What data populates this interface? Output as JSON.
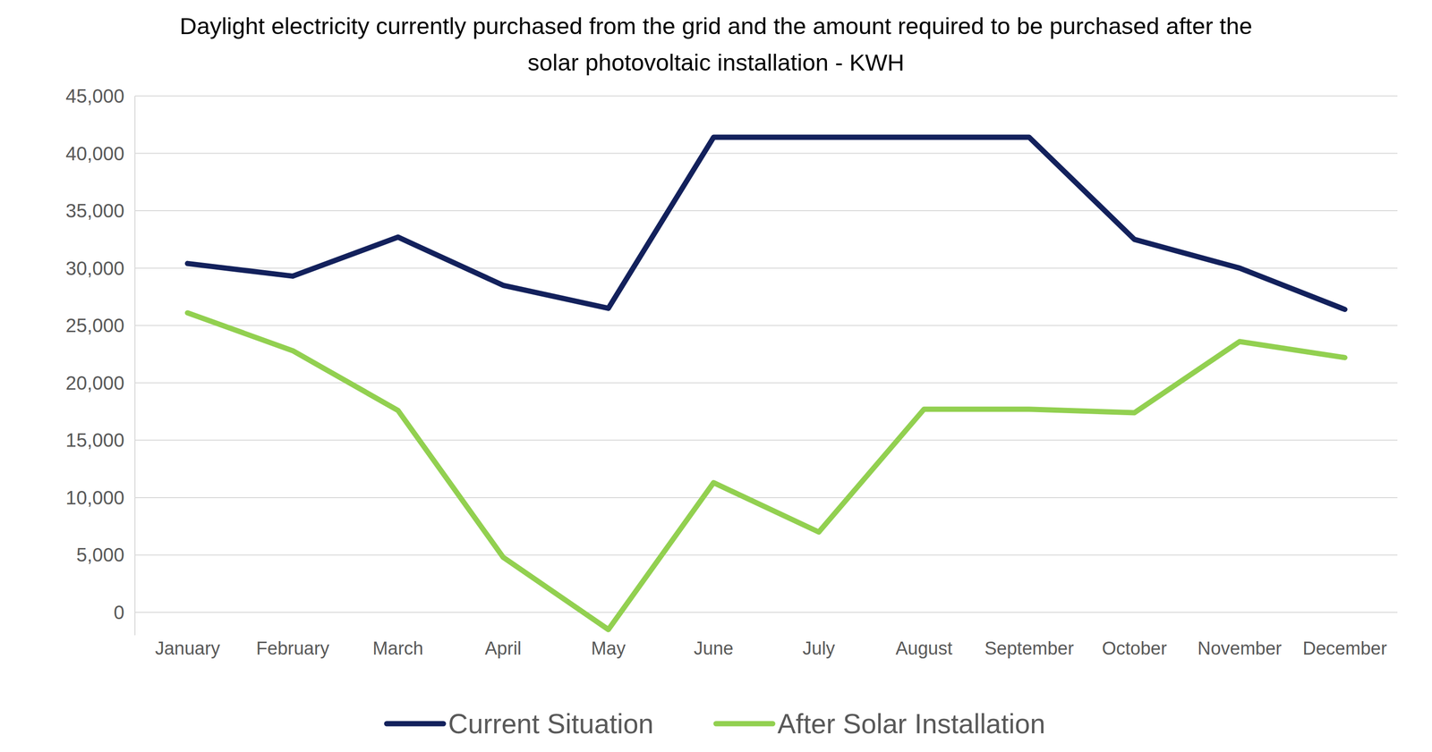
{
  "chart_data": {
    "type": "line",
    "title": "Daylight electricity currently purchased from the grid and the amount required to be purchased after the solar photovoltaic installation - KWH",
    "categories": [
      "January",
      "February",
      "March",
      "April",
      "May",
      "June",
      "July",
      "August",
      "September",
      "October",
      "November",
      "December"
    ],
    "series": [
      {
        "name": "Current Situation",
        "color": "#13215c",
        "values": [
          30400,
          29300,
          32700,
          28500,
          26500,
          41400,
          41400,
          41400,
          41400,
          32500,
          30000,
          26400
        ]
      },
      {
        "name": "After Solar Installation",
        "color": "#92d050",
        "values": [
          26100,
          22800,
          17600,
          4800,
          -1500,
          11300,
          7000,
          17700,
          17700,
          17400,
          23600,
          22200
        ]
      }
    ],
    "ylim": [
      -2000,
      45000
    ],
    "yticks": [
      0,
      {
        "value": 5000,
        "label": "5,000"
      },
      {
        "value": 10000,
        "label": "10,000"
      },
      {
        "value": 15000,
        "label": "15,000"
      },
      {
        "value": 20000,
        "label": "20,000"
      },
      {
        "value": 25000,
        "label": "25,000"
      },
      {
        "value": 30000,
        "label": "30,000"
      },
      {
        "value": 35000,
        "label": "35,000"
      },
      {
        "value": 40000,
        "label": "40,000"
      },
      {
        "value": 45000,
        "label": "45,000"
      }
    ],
    "grid": true,
    "legend": "bottom"
  }
}
